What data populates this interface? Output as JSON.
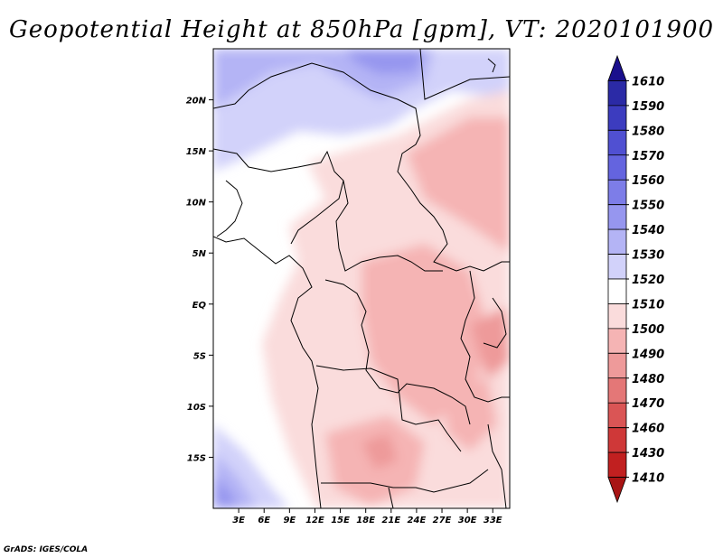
{
  "title": "Geopotential Height at 850hPa [gpm], VT: 2020101900",
  "footer": "GrADS: IGES/COLA",
  "map": {
    "x_ticks": [
      "3E",
      "6E",
      "9E",
      "12E",
      "15E",
      "18E",
      "21E",
      "24E",
      "27E",
      "30E",
      "33E"
    ],
    "y_ticks": [
      "20N",
      "15N",
      "10N",
      "5N",
      "EQ",
      "5S",
      "10S",
      "15S"
    ],
    "lon_range": [
      0,
      35
    ],
    "lat_range": [
      -20,
      25
    ]
  },
  "colorbar": {
    "labels": [
      "1610",
      "1590",
      "1580",
      "1570",
      "1560",
      "1550",
      "1540",
      "1530",
      "1520",
      "1510",
      "1500",
      "1490",
      "1480",
      "1470",
      "1460",
      "1430",
      "1410"
    ],
    "colors": [
      "#1a0f8c",
      "#2b2aa6",
      "#3c3cbf",
      "#5050d2",
      "#6464df",
      "#7d7de8",
      "#9696ef",
      "#b4b4f5",
      "#d2d2fa",
      "#ffffff",
      "#fadcdc",
      "#f5b4b4",
      "#ee9a9a",
      "#e47777",
      "#da5555",
      "#cf3838",
      "#c12020",
      "#a81414"
    ]
  }
}
